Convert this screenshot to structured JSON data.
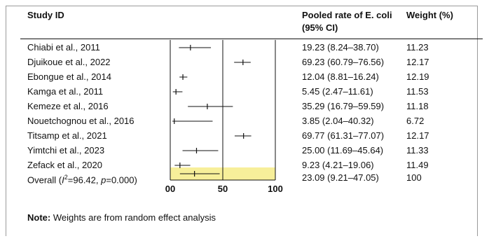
{
  "headers": {
    "study": "Study ID",
    "rate_line1": "Pooled rate of E. coli",
    "rate_line2": "(95% CI)",
    "weight": "Weight (%)"
  },
  "rows": [
    {
      "study": "Chiabi et al., 2011",
      "ci_text": "19.23 (8.24–38.70)",
      "weight": "11.23"
    },
    {
      "study": "Djuikoue et al., 2022",
      "ci_text": "69.23 (60.79–76.56)",
      "weight": "12.17"
    },
    {
      "study": "Ebongue et al., 2014",
      "ci_text": "12.04 (8.81–16.24)",
      "weight": "12.19"
    },
    {
      "study": "Kamga et al., 2011",
      "ci_text": "5.45 (2.47–11.61)",
      "weight": "11.53"
    },
    {
      "study": "Kemeze et al., 2016",
      "ci_text": "35.29 (16.79–59.59)",
      "weight": "11.18"
    },
    {
      "study": "Nouetchognou et al., 2016",
      "ci_text": "3.85 (2.04–40.32)",
      "weight": "6.72"
    },
    {
      "study": "Titsamp et al., 2021",
      "ci_text": "69.77 (61.31–77.07)",
      "weight": "12.17"
    },
    {
      "study": "Yimtchi et al., 2023",
      "ci_text": "25.00 (11.69–45.64)",
      "weight": "11.33"
    },
    {
      "study": "Zefack et al., 2020",
      "ci_text": "9.23 (4.21–19.06)",
      "weight": "11.49"
    }
  ],
  "overall": {
    "prefix": "Overall (",
    "i2_symbol": "I",
    "i2_sup": "2",
    "mid": "=96.42, ",
    "p_symbol": "p",
    "p_value": "=0.000)",
    "ci_text": "23.09 (9.21–47.05)",
    "weight": "100"
  },
  "note": {
    "label": "Note:",
    "text": " Weights are from random effect analysis"
  },
  "colors": {
    "overall_band": "#f7ef9a",
    "ink": "#111111"
  },
  "chart_data": {
    "type": "forest",
    "xlim": [
      0,
      100
    ],
    "xticks": [
      0,
      50,
      100
    ],
    "tick_labels": [
      "00",
      "50",
      "100"
    ],
    "reference_lines": [
      0,
      50,
      100
    ],
    "studies": [
      {
        "name": "Chiabi et al., 2011",
        "estimate": 19.23,
        "lower": 8.24,
        "upper": 38.7
      },
      {
        "name": "Djuikoue et al., 2022",
        "estimate": 69.23,
        "lower": 60.79,
        "upper": 76.56
      },
      {
        "name": "Ebongue et al., 2014",
        "estimate": 12.04,
        "lower": 8.81,
        "upper": 16.24
      },
      {
        "name": "Kamga et al., 2011",
        "estimate": 5.45,
        "lower": 2.47,
        "upper": 11.61
      },
      {
        "name": "Kemeze et al., 2016",
        "estimate": 35.29,
        "lower": 16.79,
        "upper": 59.59
      },
      {
        "name": "Nouetchognou et al., 2016",
        "estimate": 3.85,
        "lower": 2.04,
        "upper": 40.32
      },
      {
        "name": "Titsamp et al., 2021",
        "estimate": 69.77,
        "lower": 61.31,
        "upper": 77.07
      },
      {
        "name": "Yimtchi et al., 2023",
        "estimate": 25.0,
        "lower": 11.69,
        "upper": 45.64
      },
      {
        "name": "Zefack et al., 2020",
        "estimate": 9.23,
        "lower": 4.21,
        "upper": 19.06
      }
    ],
    "overall": {
      "estimate": 23.09,
      "lower": 9.21,
      "upper": 47.05
    }
  }
}
